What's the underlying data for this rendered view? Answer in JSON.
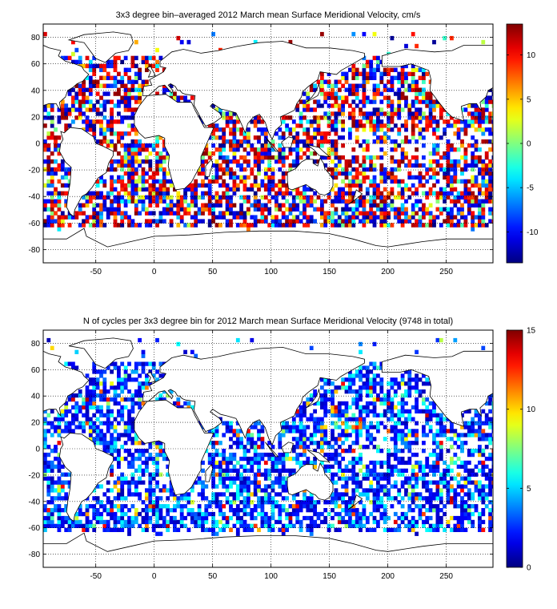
{
  "chart_data": [
    {
      "type": "heatmap",
      "title": "3x3 degree bin–averaged 2012 March mean Surface Meridional Velocity, cm/s",
      "xlim": [
        -95,
        290
      ],
      "ylim": [
        -90,
        90
      ],
      "x_ticks": [
        -50,
        0,
        50,
        100,
        150,
        200,
        250
      ],
      "y_ticks": [
        80,
        60,
        40,
        20,
        0,
        -20,
        -40,
        -60,
        -80
      ],
      "colorbar": {
        "min": -13.5,
        "max": 13.5,
        "ticks": [
          10,
          5,
          0,
          -5,
          -10
        ],
        "colormap": "jet"
      },
      "bin_size_deg": 3,
      "grid": "dotted",
      "seed": 7
    },
    {
      "type": "heatmap",
      "title": "N of cycles per 3x3 degree bin for 2012 March mean Surface Meridional Velocity (9748 in total)",
      "xlim": [
        -95,
        290
      ],
      "ylim": [
        -90,
        90
      ],
      "x_ticks": [
        -50,
        0,
        50,
        100,
        150,
        200,
        250
      ],
      "y_ticks": [
        80,
        60,
        40,
        20,
        0,
        -20,
        -40,
        -60,
        -80
      ],
      "colorbar": {
        "min": 0,
        "max": 15,
        "ticks": [
          15,
          10,
          5,
          0
        ],
        "colormap": "jet"
      },
      "bin_size_deg": 3,
      "grid": "dotted",
      "seed": 11
    }
  ]
}
